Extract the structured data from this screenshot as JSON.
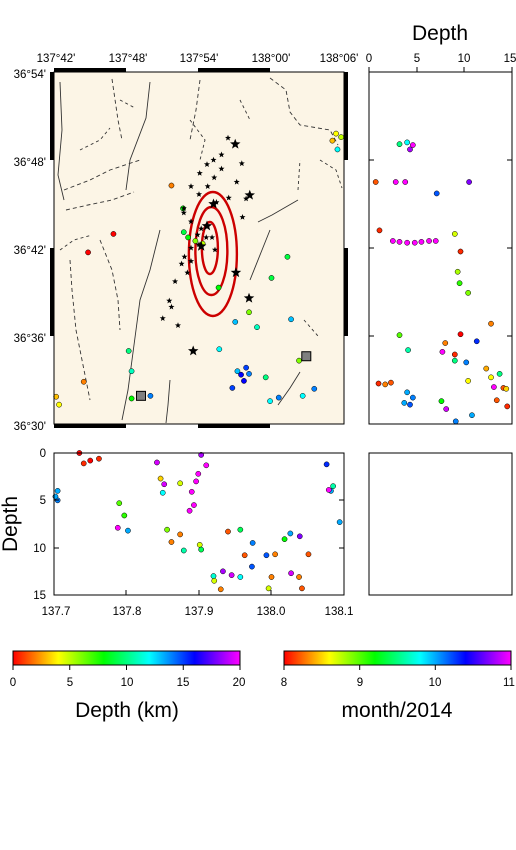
{
  "colors": {
    "map_bg": "#fcf5e6",
    "contour": "#cc0000",
    "frame": "#000000",
    "station": "#7f7f7f"
  },
  "map": {
    "lon_ticks": [
      "137°42'",
      "137°48'",
      "137°54'",
      "138°00'",
      "138°06'"
    ],
    "lat_ticks": [
      "36°54'",
      "36°48'",
      "36°42'",
      "36°36'",
      "36°30'"
    ]
  },
  "depth_section_right": {
    "title": "Depth",
    "ticks": [
      "0",
      "5",
      "10",
      "15"
    ]
  },
  "depth_section_bottom": {
    "ylabel": "Depth",
    "yticks": [
      "0",
      "5",
      "10",
      "15"
    ],
    "xticks": [
      "137.7",
      "137.8",
      "137.9",
      "138.0",
      "138.1"
    ]
  },
  "colorbars": [
    {
      "label": "Depth (km)",
      "ticks": [
        "0",
        "5",
        "10",
        "15",
        "20"
      ],
      "stops": [
        "#ff0000",
        "#ffff00",
        "#00ff00",
        "#00ffff",
        "#0000ff",
        "#ff00ff"
      ]
    },
    {
      "label": "month/2014",
      "ticks": [
        "8",
        "9",
        "10",
        "11"
      ],
      "stops": [
        "#ff0000",
        "#ffff00",
        "#00ff00",
        "#00ffff",
        "#0000ff",
        "#ff00ff"
      ]
    }
  ],
  "chart_data": [
    {
      "type": "scatter",
      "panel": "map",
      "xlim": [
        137.7,
        138.1
      ],
      "ylim": [
        36.5,
        36.9
      ],
      "title": "",
      "xlabel": "",
      "ylabel": "",
      "aftershocks": [
        [
          137.9,
          36.704
        ],
        [
          137.91,
          36.712
        ],
        [
          137.898,
          36.715
        ],
        [
          137.889,
          36.7
        ],
        [
          137.903,
          36.722
        ],
        [
          137.88,
          36.69
        ],
        [
          137.876,
          36.682
        ],
        [
          137.884,
          36.672
        ],
        [
          137.867,
          36.662
        ],
        [
          137.859,
          36.64
        ],
        [
          137.862,
          36.633
        ],
        [
          137.85,
          36.62
        ],
        [
          137.871,
          36.612
        ],
        [
          137.889,
          36.73
        ],
        [
          137.879,
          36.74
        ],
        [
          137.9,
          36.761
        ],
        [
          137.912,
          36.77
        ],
        [
          137.921,
          36.78
        ],
        [
          137.931,
          36.79
        ],
        [
          137.911,
          36.795
        ],
        [
          137.924,
          36.752
        ],
        [
          137.941,
          36.757
        ],
        [
          137.952,
          36.775
        ],
        [
          137.959,
          36.796
        ],
        [
          137.931,
          36.806
        ],
        [
          137.92,
          36.8
        ],
        [
          137.901,
          36.785
        ],
        [
          137.889,
          36.77
        ],
        [
          137.879,
          36.745
        ],
        [
          137.94,
          36.825
        ],
        [
          137.965,
          36.756
        ],
        [
          137.96,
          36.735
        ],
        [
          137.918,
          36.712
        ],
        [
          137.922,
          36.698
        ],
        [
          137.889,
          36.685
        ]
      ],
      "large_events": [
        [
          137.903,
          36.702
        ],
        [
          137.911,
          36.725
        ],
        [
          137.92,
          36.75
        ],
        [
          137.95,
          36.818
        ],
        [
          137.97,
          36.76
        ],
        [
          137.969,
          36.643
        ],
        [
          137.951,
          36.672
        ],
        [
          137.892,
          36.583
        ]
      ],
      "epicenters_depth_km": [
        [
          137.905,
          36.705,
          5
        ],
        [
          137.895,
          36.708,
          6
        ],
        [
          137.885,
          36.712,
          8
        ],
        [
          137.879,
          36.718,
          9
        ],
        [
          137.878,
          36.745,
          8
        ],
        [
          137.862,
          36.771,
          2
        ],
        [
          137.782,
          36.716,
          0
        ],
        [
          137.747,
          36.695,
          0
        ],
        [
          137.703,
          36.531,
          3
        ],
        [
          137.707,
          36.522,
          4
        ],
        [
          137.741,
          36.548,
          2
        ],
        [
          137.803,
          36.583,
          10
        ],
        [
          137.807,
          36.56,
          11
        ],
        [
          137.807,
          36.529,
          8
        ],
        [
          137.833,
          36.532,
          14
        ],
        [
          137.928,
          36.585,
          12
        ],
        [
          137.98,
          36.61,
          11
        ],
        [
          137.992,
          36.553,
          10
        ],
        [
          137.998,
          36.526,
          12
        ],
        [
          138.01,
          36.53,
          14
        ],
        [
          137.946,
          36.541,
          15
        ],
        [
          137.962,
          36.549,
          16
        ],
        [
          137.969,
          36.557,
          14
        ],
        [
          137.965,
          36.564,
          15
        ],
        [
          137.953,
          36.56,
          13
        ],
        [
          137.958,
          36.556,
          16
        ],
        [
          138.038,
          36.572,
          6
        ],
        [
          138.059,
          36.54,
          14
        ],
        [
          138.043,
          36.532,
          12
        ],
        [
          138.027,
          36.619,
          13
        ],
        [
          138.0,
          36.666,
          9
        ],
        [
          138.022,
          36.69,
          9
        ],
        [
          137.95,
          36.616,
          13
        ],
        [
          137.969,
          36.627,
          6
        ],
        [
          138.084,
          36.822,
          3
        ],
        [
          138.096,
          36.826,
          5
        ],
        [
          138.089,
          36.83,
          4
        ],
        [
          138.091,
          36.812,
          12
        ],
        [
          137.927,
          36.655,
          8
        ]
      ],
      "stations": [
        [
          137.82,
          36.532
        ],
        [
          138.048,
          36.577
        ]
      ],
      "contour_levels": 3
    },
    {
      "type": "scatter",
      "panel": "depth-vs-lat",
      "xlim": [
        0,
        15
      ],
      "ylim": [
        36.5,
        36.9
      ],
      "points_depth_lat_month": [
        [
          3.2,
          36.818,
          9.5
        ],
        [
          4.0,
          36.82,
          9.8
        ],
        [
          4.3,
          36.812,
          10.8
        ],
        [
          4.6,
          36.817,
          11.0
        ],
        [
          0.7,
          36.775,
          8.2
        ],
        [
          2.8,
          36.775,
          11.0
        ],
        [
          3.8,
          36.775,
          11.0
        ],
        [
          7.1,
          36.762,
          10.2
        ],
        [
          10.5,
          36.775,
          10.7
        ],
        [
          1.1,
          36.72,
          8.1
        ],
        [
          2.5,
          36.708,
          11.0
        ],
        [
          3.2,
          36.707,
          11.0
        ],
        [
          4.0,
          36.706,
          11.0
        ],
        [
          4.8,
          36.706,
          11.0
        ],
        [
          5.5,
          36.707,
          11.0
        ],
        [
          6.3,
          36.708,
          11.0
        ],
        [
          7.0,
          36.708,
          11.0
        ],
        [
          9.0,
          36.716,
          8.7
        ],
        [
          9.6,
          36.696,
          8.1
        ],
        [
          9.3,
          36.673,
          8.8
        ],
        [
          9.5,
          36.66,
          9.1
        ],
        [
          10.4,
          36.649,
          8.9
        ],
        [
          12.8,
          36.614,
          8.3
        ],
        [
          9.6,
          36.602,
          8.0
        ],
        [
          3.2,
          36.601,
          9.0
        ],
        [
          11.3,
          36.594,
          10.3
        ],
        [
          8.0,
          36.592,
          8.3
        ],
        [
          4.1,
          36.584,
          9.6
        ],
        [
          9.0,
          36.579,
          8.1
        ],
        [
          7.7,
          36.582,
          11.0
        ],
        [
          10.2,
          36.57,
          10.1
        ],
        [
          1.0,
          36.546,
          8.1
        ],
        [
          1.7,
          36.545,
          8.3
        ],
        [
          2.3,
          36.547,
          8.2
        ],
        [
          9.0,
          36.572,
          9.5
        ],
        [
          10.4,
          36.549,
          8.6
        ],
        [
          13.7,
          36.557,
          9.5
        ],
        [
          12.3,
          36.563,
          8.4
        ],
        [
          12.8,
          36.553,
          8.6
        ],
        [
          14.1,
          36.541,
          8.2
        ],
        [
          13.1,
          36.542,
          11.0
        ],
        [
          14.4,
          36.54,
          8.5
        ],
        [
          4.0,
          36.536,
          10.0
        ],
        [
          4.6,
          36.53,
          10.1
        ],
        [
          4.3,
          36.522,
          10.2
        ],
        [
          3.7,
          36.524,
          10.0
        ],
        [
          7.6,
          36.526,
          9.2
        ],
        [
          8.1,
          36.517,
          10.9
        ],
        [
          9.1,
          36.503,
          10.1
        ],
        [
          10.8,
          36.51,
          10.0
        ],
        [
          13.4,
          36.527,
          8.2
        ],
        [
          14.5,
          36.52,
          8.1
        ]
      ]
    },
    {
      "type": "scatter",
      "panel": "lon-vs-depth",
      "xlim": [
        137.7,
        138.1
      ],
      "ylim": [
        15,
        0
      ],
      "points_lon_depth_month": [
        [
          137.705,
          4.0,
          10.0
        ],
        [
          137.705,
          5.0,
          10.1
        ],
        [
          137.702,
          4.6,
          10.0
        ],
        [
          137.735,
          0.0,
          8.0
        ],
        [
          137.741,
          1.1,
          8.1
        ],
        [
          137.75,
          0.8,
          8.0
        ],
        [
          137.762,
          0.6,
          8.1
        ],
        [
          137.79,
          5.3,
          9.0
        ],
        [
          137.797,
          6.6,
          9.1
        ],
        [
          137.788,
          7.9,
          11.0
        ],
        [
          137.802,
          8.2,
          10.0
        ],
        [
          137.842,
          1.0,
          10.9
        ],
        [
          137.852,
          3.3,
          10.9
        ],
        [
          137.847,
          2.7,
          8.5
        ],
        [
          137.85,
          4.2,
          9.8
        ],
        [
          137.856,
          8.1,
          8.9
        ],
        [
          137.862,
          9.4,
          8.3
        ],
        [
          137.874,
          3.2,
          8.7
        ],
        [
          137.89,
          4.1,
          11.0
        ],
        [
          137.893,
          5.5,
          11.0
        ],
        [
          137.896,
          3.0,
          11.0
        ],
        [
          137.899,
          2.2,
          11.0
        ],
        [
          137.903,
          0.2,
          10.8
        ],
        [
          137.91,
          1.3,
          11.0
        ],
        [
          137.887,
          6.1,
          11.0
        ],
        [
          137.874,
          8.6,
          8.3
        ],
        [
          137.879,
          10.3,
          9.6
        ],
        [
          137.901,
          9.7,
          8.7
        ],
        [
          137.903,
          10.2,
          9.4
        ],
        [
          137.92,
          13.0,
          9.7
        ],
        [
          137.933,
          12.5,
          10.8
        ],
        [
          137.921,
          13.5,
          8.7
        ],
        [
          137.93,
          14.4,
          8.3
        ],
        [
          137.945,
          12.9,
          10.9
        ],
        [
          137.957,
          13.1,
          9.8
        ],
        [
          137.973,
          12.0,
          10.2
        ],
        [
          137.963,
          10.8,
          8.2
        ],
        [
          137.94,
          8.3,
          8.2
        ],
        [
          137.957,
          8.1,
          9.4
        ],
        [
          137.974,
          9.5,
          10.1
        ],
        [
          137.993,
          10.8,
          10.2
        ],
        [
          138.0,
          13.1,
          8.3
        ],
        [
          137.996,
          14.3,
          8.7
        ],
        [
          138.005,
          10.7,
          8.3
        ],
        [
          138.018,
          9.1,
          9.2
        ],
        [
          138.026,
          8.5,
          10.0
        ],
        [
          138.038,
          13.1,
          8.3
        ],
        [
          138.042,
          14.3,
          8.2
        ],
        [
          138.027,
          12.7,
          10.9
        ],
        [
          138.039,
          8.8,
          10.7
        ],
        [
          138.051,
          10.7,
          8.2
        ],
        [
          138.076,
          1.2,
          10.3
        ],
        [
          138.082,
          4.0,
          10.0
        ],
        [
          138.085,
          3.5,
          9.6
        ],
        [
          138.079,
          3.9,
          11.0
        ],
        [
          138.094,
          7.3,
          10.0
        ]
      ]
    }
  ]
}
